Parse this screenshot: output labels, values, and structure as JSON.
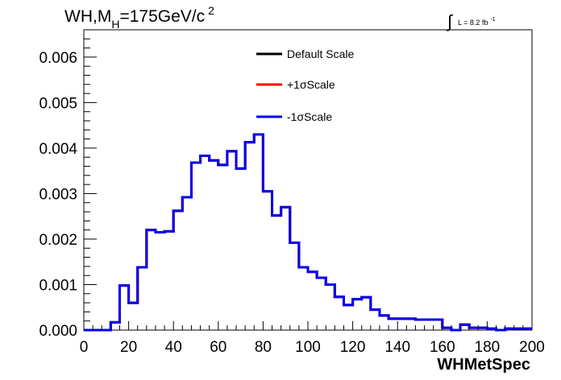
{
  "chart_data": {
    "type": "line",
    "title_main": "WH,M",
    "title_sub": "H",
    "title_rest": "=175GeV/c",
    "title_sup": "2",
    "lumi_symbol": "∫",
    "lumi_text": "L = 8.2 fb",
    "lumi_sup": "-1",
    "xlabel": "WHMetSpec",
    "ylabel": "",
    "xlim": [
      0,
      200
    ],
    "ylim": [
      0,
      0.0066
    ],
    "x_ticks": [
      0,
      20,
      40,
      60,
      80,
      100,
      120,
      140,
      160,
      180,
      200
    ],
    "y_ticks": [
      "0.000",
      "0.001",
      "0.002",
      "0.003",
      "0.004",
      "0.005",
      "0.006"
    ],
    "bin_width": 4,
    "bin_edges_start": 0,
    "series": [
      {
        "name": "Default Scale",
        "color": "#000000",
        "values": [
          0,
          0,
          0,
          0.00017,
          0.00098,
          0.0006,
          0.00138,
          0.0022,
          0.00215,
          0.00217,
          0.00262,
          0.00292,
          0.00368,
          0.00383,
          0.00373,
          0.00363,
          0.00393,
          0.00355,
          0.00413,
          0.0043,
          0.00305,
          0.00252,
          0.0027,
          0.00192,
          0.00138,
          0.00128,
          0.00115,
          0.001,
          0.00073,
          0.00055,
          0.00068,
          0.00072,
          0.00045,
          0.00032,
          0.00025,
          0.00025,
          0.00025,
          0.00023,
          0.00023,
          0.00023,
          5e-05,
          0,
          0.00012,
          5e-05,
          5e-05,
          3e-05,
          0,
          3e-05,
          3e-05,
          3e-05,
          3e-05,
          5e-05,
          5e-05,
          3e-05,
          3e-05,
          3e-05,
          5e-05,
          3e-05,
          3e-05,
          3e-05,
          5e-05,
          5e-05,
          3e-05,
          3e-05,
          0,
          0,
          3e-05,
          3e-05,
          3e-05,
          5e-05,
          3e-05,
          5e-05,
          3e-05,
          3e-05,
          3e-05,
          3e-05,
          3e-05,
          3e-05,
          3e-05,
          3e-05
        ]
      },
      {
        "name": "+1σScale",
        "color": "#ff0000",
        "values": [
          0,
          0,
          0,
          0.00017,
          0.00098,
          0.0006,
          0.00138,
          0.0022,
          0.00215,
          0.00217,
          0.00262,
          0.00292,
          0.00368,
          0.00383,
          0.00373,
          0.00363,
          0.00393,
          0.00355,
          0.00413,
          0.0043,
          0.00305,
          0.00252,
          0.0027,
          0.00192,
          0.00138,
          0.00128,
          0.00115,
          0.001,
          0.00073,
          0.00055,
          0.00068,
          0.00072,
          0.00045,
          0.00032,
          0.00025,
          0.00025,
          0.00025,
          0.00023,
          0.00023,
          0.00023,
          5e-05,
          0,
          0.00012,
          5e-05,
          5e-05,
          3e-05,
          0,
          3e-05,
          3e-05,
          3e-05,
          3e-05,
          5e-05,
          5e-05,
          3e-05,
          3e-05,
          3e-05,
          5e-05,
          3e-05,
          3e-05,
          3e-05,
          5e-05,
          5e-05,
          3e-05,
          3e-05,
          0,
          0,
          3e-05,
          3e-05,
          3e-05,
          5e-05,
          3e-05,
          5e-05,
          3e-05,
          3e-05,
          3e-05,
          3e-05,
          3e-05,
          3e-05,
          3e-05,
          3e-05
        ]
      },
      {
        "name": "-1σScale",
        "color": "#0000ee",
        "values": [
          0,
          0,
          0,
          0.00017,
          0.00098,
          0.0006,
          0.00138,
          0.0022,
          0.00215,
          0.00217,
          0.00262,
          0.00292,
          0.00368,
          0.00383,
          0.00373,
          0.00363,
          0.00393,
          0.00355,
          0.00413,
          0.0043,
          0.00305,
          0.00252,
          0.0027,
          0.00192,
          0.00138,
          0.00128,
          0.00115,
          0.001,
          0.00073,
          0.00055,
          0.00068,
          0.00072,
          0.00045,
          0.00032,
          0.00025,
          0.00025,
          0.00025,
          0.00023,
          0.00023,
          0.00023,
          5e-05,
          0,
          0.00012,
          5e-05,
          5e-05,
          3e-05,
          0,
          3e-05,
          3e-05,
          3e-05,
          3e-05,
          5e-05,
          5e-05,
          3e-05,
          3e-05,
          3e-05,
          5e-05,
          3e-05,
          3e-05,
          3e-05,
          5e-05,
          5e-05,
          3e-05,
          3e-05,
          0,
          0,
          3e-05,
          3e-05,
          3e-05,
          5e-05,
          3e-05,
          5e-05,
          3e-05,
          3e-05,
          3e-05,
          3e-05,
          3e-05,
          3e-05,
          3e-05,
          3e-05
        ]
      }
    ],
    "legend_placement": "top-center",
    "grid": false
  }
}
